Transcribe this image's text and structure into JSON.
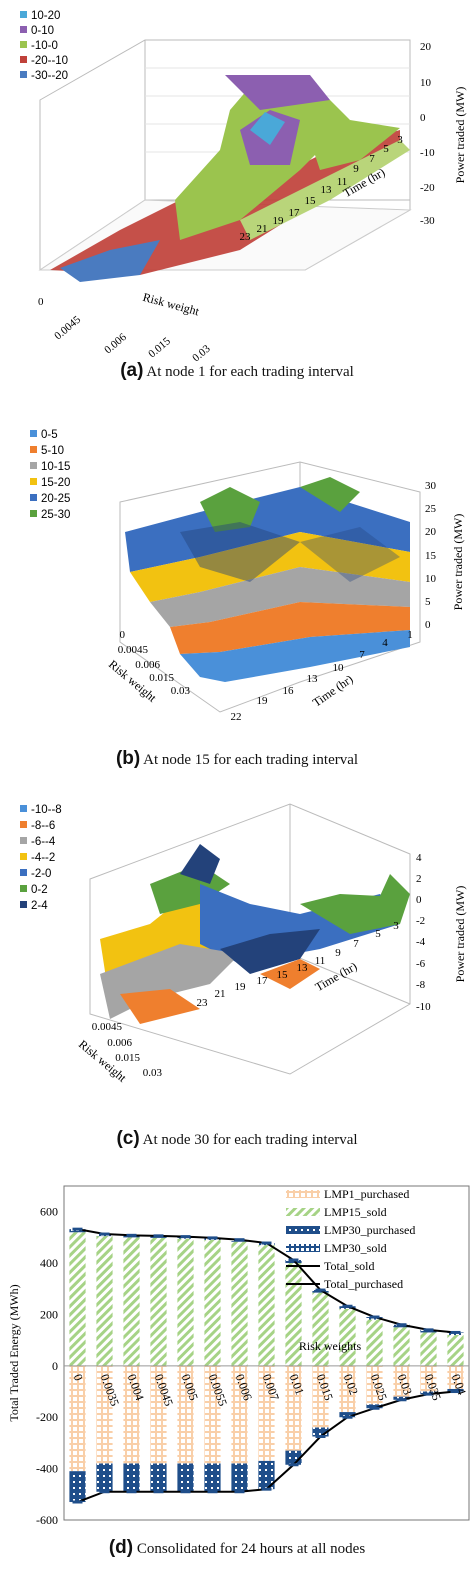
{
  "chart_data": [
    {
      "type": "surface",
      "caption_label": "(a)",
      "caption_text": "At node 1 for each trading interval",
      "legend": [
        {
          "label": "10-20",
          "color": "#4aa8d8"
        },
        {
          "label": "0-10",
          "color": "#8c5fb0"
        },
        {
          "label": "-10-0",
          "color": "#9bc44e"
        },
        {
          "label": "-20--10",
          "color": "#c0413a"
        },
        {
          "label": "-30--20",
          "color": "#4a7bc0"
        }
      ],
      "z_label": "Power traded (MW)",
      "z_ticks": [
        "20",
        "10",
        "0",
        "-10",
        "-20",
        "-30"
      ],
      "x_label": "Time (hr)",
      "x_ticks": [
        "23",
        "21",
        "19",
        "17",
        "15",
        "13",
        "11",
        "9",
        "7",
        "5",
        "3"
      ],
      "y_label": "Risk weight",
      "y_ticks": [
        "0",
        "0.0045",
        "0.006",
        "0.015",
        "0.03"
      ]
    },
    {
      "type": "surface",
      "caption_label": "(b)",
      "caption_text": "At node 15 for each trading interval",
      "legend": [
        {
          "label": "0-5",
          "color": "#4a90d9"
        },
        {
          "label": "5-10",
          "color": "#ef7f2e"
        },
        {
          "label": "10-15",
          "color": "#a5a5a5"
        },
        {
          "label": "15-20",
          "color": "#f2c211"
        },
        {
          "label": "20-25",
          "color": "#3b6fc0"
        },
        {
          "label": "25-30",
          "color": "#5aa13e"
        }
      ],
      "z_label": "Power traded (MW)",
      "z_ticks": [
        "30",
        "25",
        "20",
        "15",
        "10",
        "5",
        "0"
      ],
      "x_label": "Time (hr)",
      "x_ticks": [
        "22",
        "19",
        "16",
        "13",
        "10",
        "7",
        "4",
        "1"
      ],
      "y_label": "Risk weight",
      "y_ticks": [
        "0",
        "0.0045",
        "0.006",
        "0.015",
        "0.03"
      ]
    },
    {
      "type": "surface",
      "caption_label": "(c)",
      "caption_text": "At node 30 for each trading interval",
      "legend": [
        {
          "label": "-10--8",
          "color": "#4a90d9"
        },
        {
          "label": "-8--6",
          "color": "#ef7f2e"
        },
        {
          "label": "-6--4",
          "color": "#a5a5a5"
        },
        {
          "label": "-4--2",
          "color": "#f2c211"
        },
        {
          "label": "-2-0",
          "color": "#3b6fc0"
        },
        {
          "label": "0-2",
          "color": "#5aa13e"
        },
        {
          "label": "2-4",
          "color": "#23427a"
        }
      ],
      "z_label": "Power traded (MW)",
      "z_ticks": [
        "4",
        "2",
        "0",
        "-2",
        "-4",
        "-6",
        "-8",
        "-10"
      ],
      "x_label": "Time (hr)",
      "x_ticks": [
        "23",
        "21",
        "19",
        "17",
        "15",
        "13",
        "11",
        "9",
        "7",
        "5",
        "3"
      ],
      "y_label": "Risk weight",
      "y_ticks": [
        "0.0045",
        "0.006",
        "0.015",
        "0.03"
      ]
    },
    {
      "type": "bar",
      "caption_label": "(d)",
      "caption_text": "Consolidated for 24 hours at all nodes",
      "ylabel": "Total Traded Energy (MWh)",
      "xlabel": "Risk weights",
      "ylim": [
        -600,
        700
      ],
      "y_ticks": [
        600,
        400,
        200,
        0,
        -200,
        -400,
        -600
      ],
      "categories": [
        "0",
        "0.0035",
        "0.004",
        "0.0045",
        "0.005",
        "0.0055",
        "0.006",
        "0.007",
        "0.01",
        "0.015",
        "0.02",
        "0.025",
        "0.03",
        "0.035",
        "0.04"
      ],
      "series": [
        {
          "name": "LMP1_purchased",
          "values": [
            -410,
            -380,
            -380,
            -380,
            -380,
            -380,
            -380,
            -370,
            -330,
            -240,
            -180,
            -150,
            -120,
            -100,
            -90
          ]
        },
        {
          "name": "LMP15_sold",
          "values": [
            520,
            505,
            500,
            498,
            495,
            490,
            483,
            470,
            400,
            285,
            222,
            180,
            150,
            130,
            120
          ]
        },
        {
          "name": "LMP30_purchased",
          "values": [
            -120,
            -110,
            -110,
            -110,
            -110,
            -110,
            -110,
            -110,
            -55,
            -35,
            -20,
            -15,
            -12,
            -10,
            -10
          ]
        },
        {
          "name": "LMP30_sold",
          "values": [
            12,
            8,
            8,
            8,
            8,
            8,
            8,
            8,
            12,
            10,
            10,
            10,
            10,
            10,
            10
          ]
        },
        {
          "name": "Total_sold",
          "values": [
            532,
            513,
            508,
            506,
            503,
            498,
            491,
            478,
            412,
            295,
            232,
            190,
            160,
            140,
            130
          ]
        },
        {
          "name": "Total_purchased",
          "values": [
            -530,
            -490,
            -490,
            -490,
            -490,
            -490,
            -490,
            -480,
            -385,
            -275,
            -200,
            -165,
            -132,
            -110,
            -100
          ]
        }
      ]
    }
  ]
}
